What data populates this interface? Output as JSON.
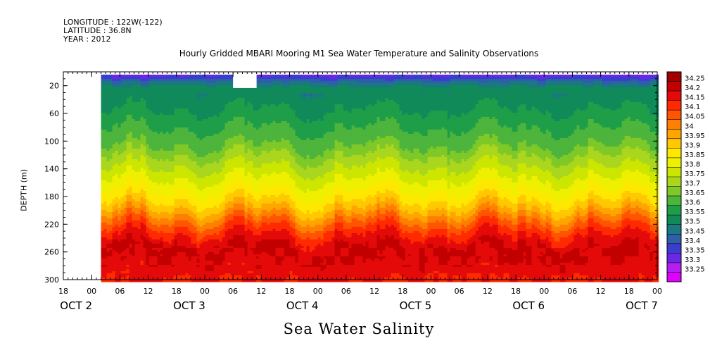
{
  "header": {
    "longitude": "LONGITUDE : 122W(-122)",
    "latitude": "LATITUDE : 36.8N",
    "year": "YEAR : 2012"
  },
  "chart_data": {
    "type": "heatmap",
    "title": "Hourly Gridded MBARI Mooring M1 Sea Water Temperature and Salinity Observations",
    "footer": "Sea Water Salinity",
    "ylabel": "DEPTH (m)",
    "x_range_hours": [
      18,
      96
    ],
    "x_data_start_hours": 26,
    "x_missing_box_hours": [
      54,
      59
    ],
    "y_range": [
      300,
      0
    ],
    "y_data_top": 4,
    "y_ticks": [
      20,
      60,
      100,
      140,
      180,
      220,
      260,
      300
    ],
    "x_hour_ticks": [
      {
        "h": 18,
        "label": "18"
      },
      {
        "h": 24,
        "label": "00"
      },
      {
        "h": 30,
        "label": "06"
      },
      {
        "h": 36,
        "label": "12"
      },
      {
        "h": 42,
        "label": "18"
      },
      {
        "h": 48,
        "label": "00"
      },
      {
        "h": 54,
        "label": "06"
      },
      {
        "h": 60,
        "label": "12"
      },
      {
        "h": 66,
        "label": "18"
      },
      {
        "h": 72,
        "label": "00"
      },
      {
        "h": 78,
        "label": "06"
      },
      {
        "h": 84,
        "label": "12"
      },
      {
        "h": 90,
        "label": "18"
      },
      {
        "h": 96,
        "label": "00"
      },
      {
        "h": 102,
        "label": "06"
      },
      {
        "h": 108,
        "label": "12"
      },
      {
        "h": 114,
        "label": "18"
      },
      {
        "h": 120,
        "label": "00"
      },
      {
        "h": 126,
        "label": "06"
      },
      {
        "h": 132,
        "label": "12"
      },
      {
        "h": 138,
        "label": "18"
      },
      {
        "h": 144,
        "label": "00"
      }
    ],
    "x_day_labels": [
      {
        "h": 24,
        "label": "OCT  2"
      },
      {
        "h": 48,
        "label": "OCT  3"
      },
      {
        "h": 72,
        "label": "OCT  4"
      },
      {
        "h": 96,
        "label": "OCT  5"
      },
      {
        "h": 120,
        "label": "OCT  6"
      },
      {
        "h": 144,
        "label": "OCT  7"
      }
    ],
    "colorbar_levels": [
      "34.25",
      "34.2",
      "34.15",
      "34.1",
      "34.05",
      "34",
      "33.95",
      "33.9",
      "33.85",
      "33.8",
      "33.75",
      "33.7",
      "33.65",
      "33.6",
      "33.55",
      "33.5",
      "33.45",
      "33.4",
      "33.35",
      "33.3",
      "33.25"
    ],
    "colorbar_colors": [
      "#a00000",
      "#c20000",
      "#e40a0a",
      "#ff2a00",
      "#ff5500",
      "#ff7f00",
      "#ffa500",
      "#ffc800",
      "#ffe800",
      "#eef000",
      "#cce600",
      "#aad61e",
      "#7ec828",
      "#4db43c",
      "#1e9e48",
      "#118a5a",
      "#1a7882",
      "#2f5fa8",
      "#3c3cd0",
      "#6a28e6",
      "#b41ef0",
      "#e000ff"
    ],
    "depth_profile": [
      {
        "depth": 4,
        "value": 33.33
      },
      {
        "depth": 12,
        "value": 33.44
      },
      {
        "depth": 20,
        "value": 33.5
      },
      {
        "depth": 40,
        "value": 33.53
      },
      {
        "depth": 60,
        "value": 33.56
      },
      {
        "depth": 80,
        "value": 33.6
      },
      {
        "depth": 100,
        "value": 33.63
      },
      {
        "depth": 120,
        "value": 33.7
      },
      {
        "depth": 140,
        "value": 33.76
      },
      {
        "depth": 160,
        "value": 33.82
      },
      {
        "depth": 180,
        "value": 33.88
      },
      {
        "depth": 200,
        "value": 33.97
      },
      {
        "depth": 210,
        "value": 34.03
      },
      {
        "depth": 220,
        "value": 34.08
      },
      {
        "depth": 230,
        "value": 34.13
      },
      {
        "depth": 240,
        "value": 34.17
      },
      {
        "depth": 255,
        "value": 34.21
      },
      {
        "depth": 270,
        "value": 34.19
      },
      {
        "depth": 300,
        "value": 34.15
      }
    ]
  }
}
